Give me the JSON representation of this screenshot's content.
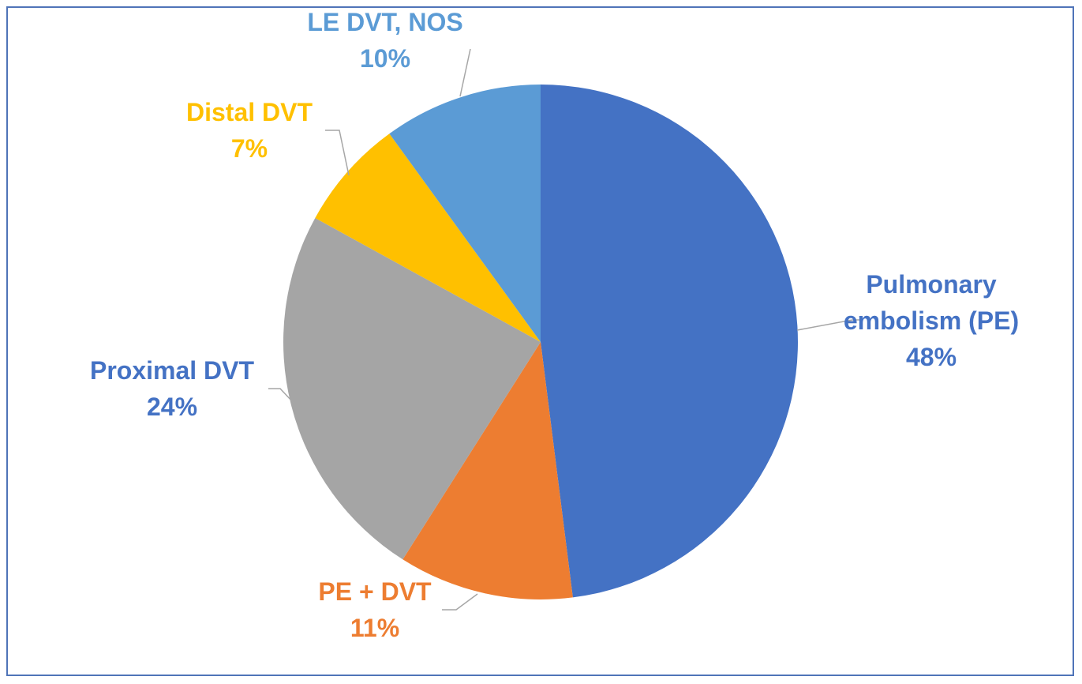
{
  "chart_data": {
    "type": "pie",
    "title": "",
    "slices": [
      {
        "label": "Pulmonary embolism (PE)",
        "label_lines": [
          "Pulmonary",
          "embolism (PE)"
        ],
        "value": 48,
        "value_label": "48%",
        "color": "#4472c4",
        "label_color": "#4472c4"
      },
      {
        "label": "PE + DVT",
        "label_lines": [
          "PE + DVT"
        ],
        "value": 11,
        "value_label": "11%",
        "color": "#ed7d31",
        "label_color": "#ed7d31"
      },
      {
        "label": "Proximal DVT",
        "label_lines": [
          "Proximal DVT"
        ],
        "value": 24,
        "value_label": "24%",
        "color": "#a5a5a5",
        "label_color": "#4472c4"
      },
      {
        "label": "Distal DVT",
        "label_lines": [
          "Distal DVT"
        ],
        "value": 7,
        "value_label": "7%",
        "color": "#ffc000",
        "label_color": "#ffc000"
      },
      {
        "label": "LE DVT, NOS",
        "label_lines": [
          "LE DVT, NOS"
        ],
        "value": 10,
        "value_label": "10%",
        "color": "#5b9bd5",
        "label_color": "#5b9bd5"
      }
    ],
    "start_angle": "12 o'clock",
    "direction": "clockwise",
    "legend": "none"
  },
  "colors": {
    "frame_border": "#4f74b8",
    "leader_line": "#a6a6a6",
    "background": "#ffffff"
  }
}
